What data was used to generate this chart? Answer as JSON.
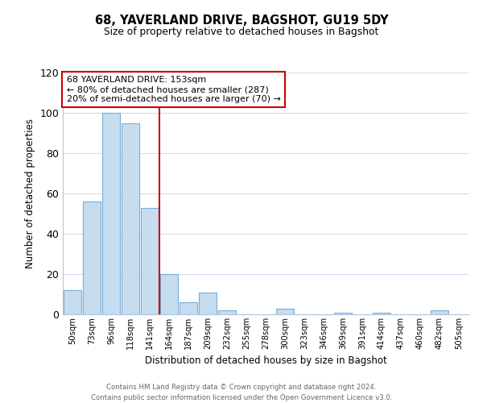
{
  "title": "68, YAVERLAND DRIVE, BAGSHOT, GU19 5DY",
  "subtitle": "Size of property relative to detached houses in Bagshot",
  "xlabel": "Distribution of detached houses by size in Bagshot",
  "ylabel": "Number of detached properties",
  "bar_labels": [
    "50sqm",
    "73sqm",
    "96sqm",
    "118sqm",
    "141sqm",
    "164sqm",
    "187sqm",
    "209sqm",
    "232sqm",
    "255sqm",
    "278sqm",
    "300sqm",
    "323sqm",
    "346sqm",
    "369sqm",
    "391sqm",
    "414sqm",
    "437sqm",
    "460sqm",
    "482sqm",
    "505sqm"
  ],
  "bar_heights": [
    12,
    56,
    100,
    95,
    53,
    20,
    6,
    11,
    2,
    0,
    0,
    3,
    0,
    0,
    1,
    0,
    1,
    0,
    0,
    2,
    0
  ],
  "bar_color": "#c6ddf0",
  "bar_edge_color": "#7aaed4",
  "vline_x": 4.5,
  "vline_color": "#cc0000",
  "ylim": [
    0,
    120
  ],
  "yticks": [
    0,
    20,
    40,
    60,
    80,
    100,
    120
  ],
  "annotation_title": "68 YAVERLAND DRIVE: 153sqm",
  "annotation_line1": "← 80% of detached houses are smaller (287)",
  "annotation_line2": "20% of semi-detached houses are larger (70) →",
  "annotation_box_color": "#ffffff",
  "annotation_box_edge": "#cc0000",
  "footer_line1": "Contains HM Land Registry data © Crown copyright and database right 2024.",
  "footer_line2": "Contains public sector information licensed under the Open Government Licence v3.0.",
  "background_color": "#ffffff",
  "grid_color": "#ccddf0"
}
